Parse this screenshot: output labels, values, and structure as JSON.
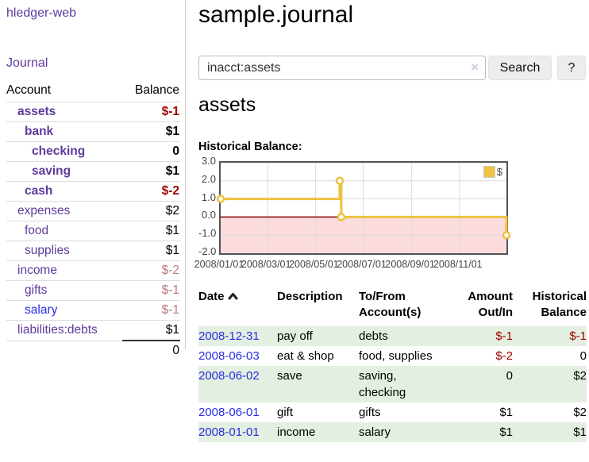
{
  "colors": {
    "accent_purple": "#5e3a9c",
    "link_blue": "#2a2ce0",
    "negative_strong": "#a00000",
    "negative_muted": "#bd7878",
    "row_stripe_green": "#e3efe0",
    "chart_line_gold": "#edc240",
    "chart_negative_fill": "#fcdcdc",
    "chart_zero_line": "#8b0000",
    "chart_border": "#545454",
    "chart_grid": "#dcdcdc"
  },
  "sidebar": {
    "brand": "hledger-web",
    "journal_link": "Journal",
    "accounts": {
      "account_header": "Account",
      "balance_header": "Balance",
      "rows": [
        {
          "name": "assets",
          "balance": "$-1",
          "indent": 1,
          "bold": true,
          "balance_style": "neg-strong",
          "link_style": "purple"
        },
        {
          "name": "bank",
          "balance": "$1",
          "indent": 2,
          "bold": true,
          "balance_style": "normal",
          "link_style": "purple"
        },
        {
          "name": "checking",
          "balance": "0",
          "indent": 3,
          "bold": true,
          "balance_style": "normal",
          "link_style": "purple"
        },
        {
          "name": "saving",
          "balance": "$1",
          "indent": 3,
          "bold": true,
          "balance_style": "normal",
          "link_style": "purple"
        },
        {
          "name": "cash",
          "balance": "$-2",
          "indent": 2,
          "bold": true,
          "balance_style": "neg-strong",
          "link_style": "purple"
        },
        {
          "name": "expenses",
          "balance": "$2",
          "indent": 1,
          "bold": false,
          "balance_style": "normal",
          "link_style": "purple"
        },
        {
          "name": "food",
          "balance": "$1",
          "indent": 2,
          "bold": false,
          "balance_style": "normal",
          "link_style": "purple"
        },
        {
          "name": "supplies",
          "balance": "$1",
          "indent": 2,
          "bold": false,
          "balance_style": "normal",
          "link_style": "purple"
        },
        {
          "name": "income",
          "balance": "$-2",
          "indent": 1,
          "bold": false,
          "balance_style": "neg-soft",
          "link_style": "purple"
        },
        {
          "name": "gifts",
          "balance": "$-1",
          "indent": 2,
          "bold": false,
          "balance_style": "neg-soft",
          "link_style": "purple"
        },
        {
          "name": "salary",
          "balance": "$-1",
          "indent": 2,
          "bold": false,
          "balance_style": "neg-soft",
          "link_style": "blue"
        },
        {
          "name": "liabilities:debts",
          "balance": "$1",
          "indent": 1,
          "bold": false,
          "balance_style": "normal",
          "link_style": "purple"
        }
      ],
      "total": "0"
    }
  },
  "main": {
    "title": "sample.journal",
    "search": {
      "value": "inacct:assets",
      "clear_icon": "×",
      "search_button": "Search",
      "help_button": "?"
    },
    "account_heading": "assets",
    "chart_title": "Historical Balance:"
  },
  "chart_data": {
    "type": "line",
    "step": true,
    "title": "Historical Balance:",
    "series": [
      {
        "name": "$",
        "color": "#edc240",
        "points": [
          [
            "2008-01-01",
            1
          ],
          [
            "2008-06-01",
            2
          ],
          [
            "2008-06-03",
            0
          ],
          [
            "2008-12-31",
            -1
          ]
        ]
      }
    ],
    "x_start": "2008-01-01",
    "x_end": "2008-12-31",
    "x_ticks": [
      "2008/01/01",
      "2008/03/01",
      "2008/05/01",
      "2008/07/01",
      "2008/09/01",
      "2008/11/01"
    ],
    "y_ticks": [
      "3.0",
      "2.0",
      "1.0",
      "0.0",
      "-1.0",
      "-2.0"
    ],
    "ylim": [
      -2,
      3
    ],
    "grid": true,
    "zero_line": true,
    "legend": {
      "label": "$",
      "position": "top-right"
    }
  },
  "transactions": {
    "sort": "date ascending",
    "headers": {
      "date": "Date",
      "description": "Description",
      "tofrom": "To/From Account(s)",
      "amount": "Amount Out/In",
      "balance": "Historical Balance"
    },
    "rows": [
      {
        "date": "2008-12-31",
        "description": "pay off",
        "accounts": "debts",
        "amount": "$-1",
        "amount_style": "neg-strong",
        "balance": "$-1",
        "balance_style": "neg-strong",
        "shaded": true
      },
      {
        "date": "2008-06-03",
        "description": "eat & shop",
        "accounts": "food, supplies",
        "amount": "$-2",
        "amount_style": "neg-strong",
        "balance": "0",
        "balance_style": "normal",
        "shaded": false
      },
      {
        "date": "2008-06-02",
        "description": "save",
        "accounts": "saving, checking",
        "amount": "0",
        "amount_style": "normal",
        "balance": "$2",
        "balance_style": "normal",
        "shaded": true
      },
      {
        "date": "2008-06-01",
        "description": "gift",
        "accounts": "gifts",
        "amount": "$1",
        "amount_style": "normal",
        "balance": "$2",
        "balance_style": "normal",
        "shaded": false
      },
      {
        "date": "2008-01-01",
        "description": "income",
        "accounts": "salary",
        "amount": "$1",
        "amount_style": "normal",
        "balance": "$1",
        "balance_style": "normal",
        "shaded": true
      }
    ]
  }
}
